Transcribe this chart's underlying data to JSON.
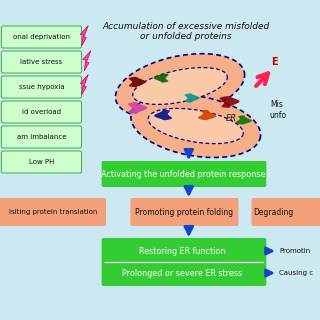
{
  "bg_color": "#cce8f0",
  "title": "Accumulation of excessive misfolded\nor unfolded proteins",
  "left_boxes": [
    "onal deprivation",
    "lative stress",
    "ssue hypoxia",
    "id overload",
    "am imbalance",
    "Low PH"
  ],
  "green_box1": "Activating the unfolded protein response",
  "salmon_box_left": "isiting protein translation",
  "salmon_box_center": "Promoting protein folding",
  "salmon_box_right": "Degrading",
  "green_box2_top": "Restoring ER function",
  "green_box2_bot": "Prolonged or severe ER stress",
  "right_label_top": "Promotin",
  "right_label_bot": "Causing c",
  "er_label": "ER",
  "er_arrow_label": "E",
  "mis_label": "Mis\nunfo",
  "green_color": "#33cc33",
  "salmon_color": "#f4a07a",
  "left_box_fill": "#ccffcc",
  "left_box_edge": "#44aa44",
  "lightning_color": "#ff44aa",
  "lightning_edge": "#cc0066",
  "arrow_blue": "#1144cc",
  "er_outer_fill": "#f5b08a",
  "er_inner_fill": "#f9c9a8",
  "er_border": "#000088",
  "dot_color": "#000099",
  "protein_colors": [
    "#660000",
    "#006600",
    "#cc44aa",
    "#001188",
    "#009988",
    "#cc4400",
    "#880000",
    "#007700",
    "#cc8800",
    "#006644"
  ],
  "pink_arrow_color": "#ff2255",
  "dark_text": "#111111"
}
